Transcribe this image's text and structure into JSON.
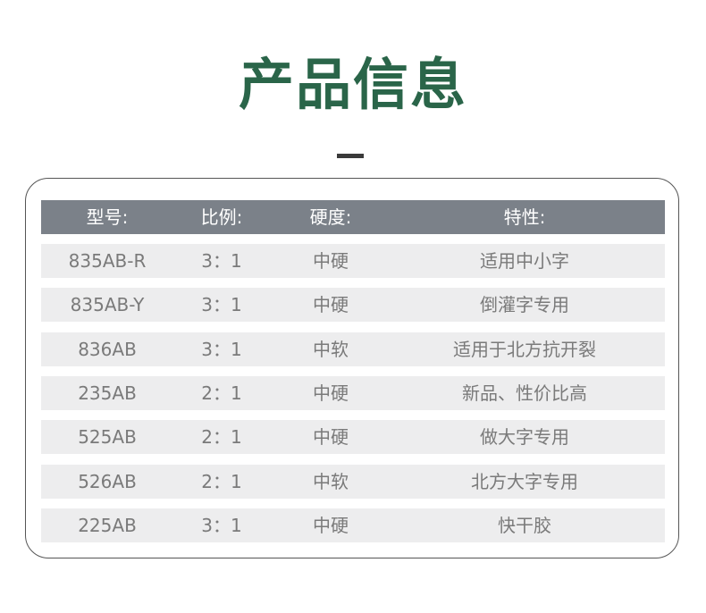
{
  "colors": {
    "accent": "#2a6549",
    "header_bg": "#7b8189",
    "row_bg": "#ededee"
  },
  "title": "产品信息",
  "table": {
    "headers": [
      "型号:",
      "比例:",
      "硬度:",
      "特性:"
    ],
    "rows": [
      [
        "835AB-R",
        "3：1",
        "中硬",
        "适用中小字"
      ],
      [
        "835AB-Y",
        "3：1",
        "中硬",
        "倒灌字专用"
      ],
      [
        "836AB",
        "3：1",
        "中软",
        "适用于北方抗开裂"
      ],
      [
        "235AB",
        "2：1",
        "中硬",
        "新品、性价比高"
      ],
      [
        "525AB",
        "2：1",
        "中硬",
        "做大字专用"
      ],
      [
        "526AB",
        "2：1",
        "中软",
        "北方大字专用"
      ],
      [
        "225AB",
        "3：1",
        "中硬",
        "快干胶"
      ]
    ]
  }
}
